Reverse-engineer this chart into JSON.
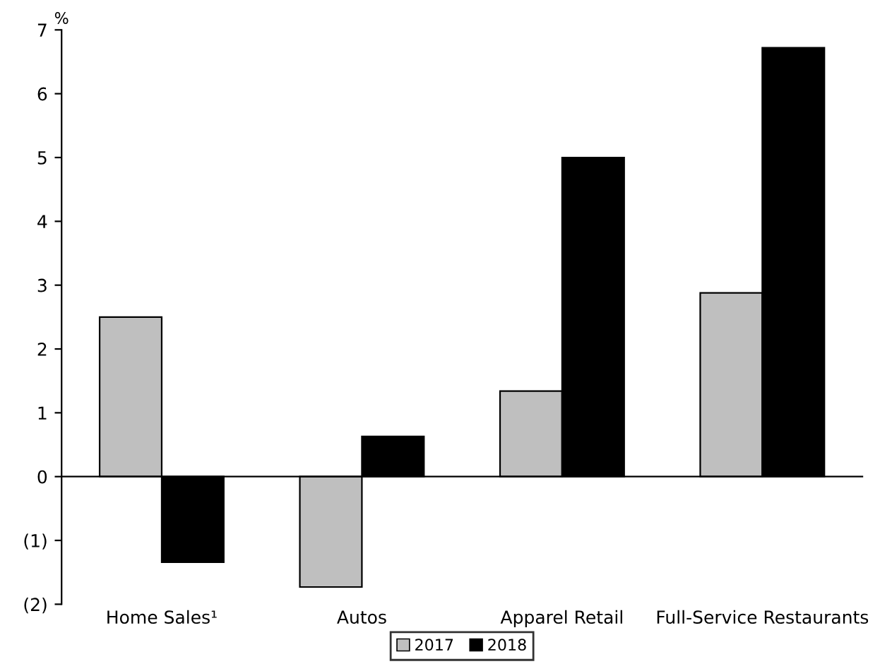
{
  "chart_data": {
    "type": "bar",
    "ylabel": "%",
    "categories": [
      "Home Sales¹",
      "Autos",
      "Apparel Retail",
      "Full-Service Restaurants"
    ],
    "series": [
      {
        "name": "2017",
        "color": "#bfbfbf",
        "values": [
          2.5,
          -1.73,
          1.34,
          2.88
        ]
      },
      {
        "name": "2018",
        "color": "#000000",
        "values": [
          -1.34,
          0.63,
          5.0,
          6.72
        ]
      }
    ],
    "ylim": [
      -2,
      7
    ],
    "yticks": [
      {
        "value": -2,
        "label": "(2)"
      },
      {
        "value": -1,
        "label": "(1)"
      },
      0,
      1,
      2,
      3,
      4,
      5,
      6,
      7
    ],
    "legend": "bottom"
  }
}
